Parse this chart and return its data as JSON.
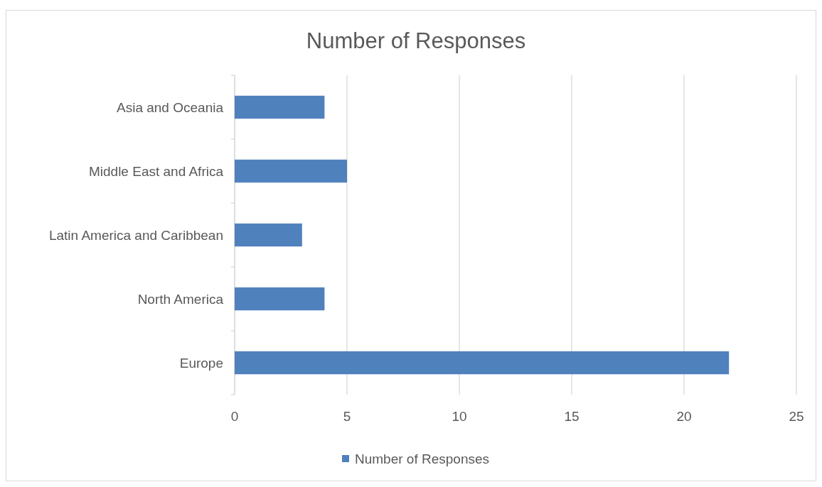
{
  "chart_data": {
    "type": "bar",
    "orientation": "horizontal",
    "title": "Number of Responses",
    "categories": [
      "Asia and Oceania",
      "Middle East and Africa",
      "Latin America and Caribbean",
      "North America",
      "Europe"
    ],
    "series": [
      {
        "name": "Number of Responses",
        "color": "#4f81bd",
        "values": [
          4,
          5,
          3,
          4,
          22
        ]
      }
    ],
    "xlim": [
      0,
      25
    ],
    "xticks": [
      0,
      5,
      10,
      15,
      20,
      25
    ],
    "grid": "x",
    "legend": "bottom"
  }
}
